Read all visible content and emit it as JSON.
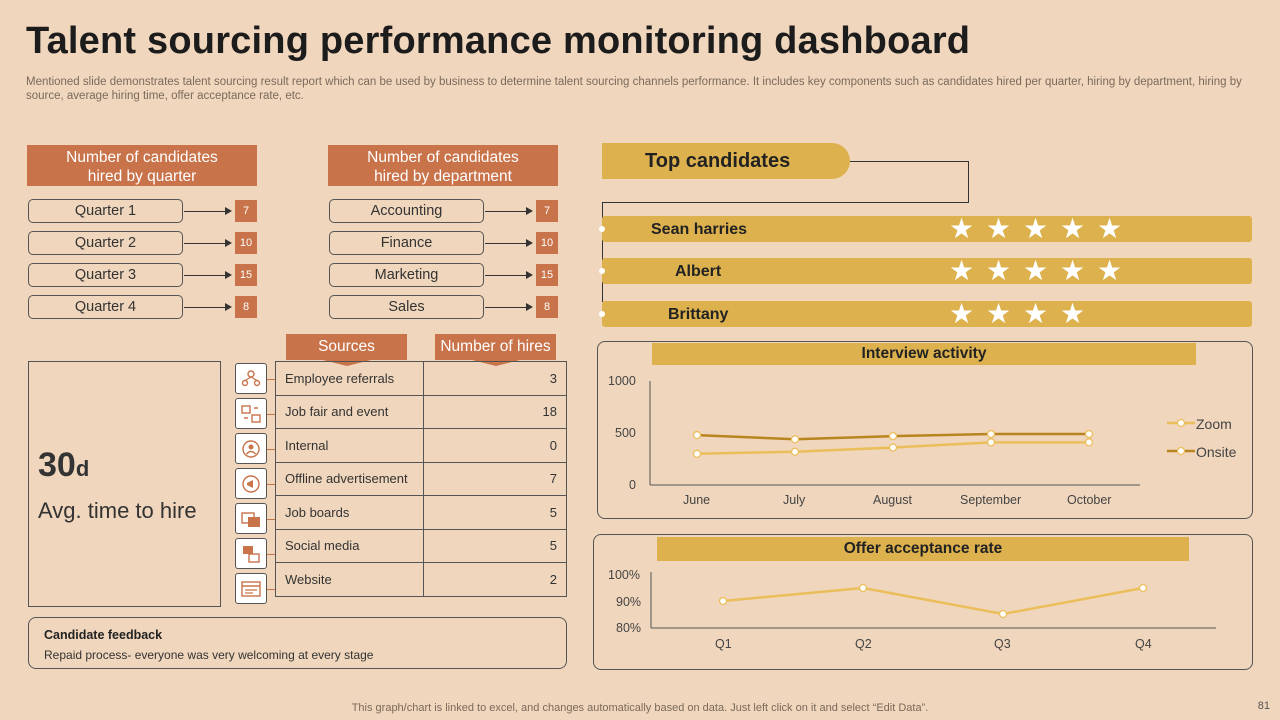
{
  "title": "Talent sourcing performance monitoring dashboard",
  "subtitle": "Mentioned slide demonstrates talent sourcing result report which can be used by business to determine talent sourcing channels performance. It includes key components such as candidates hired per quarter, hiring by department, hiring by source, average hiring time, offer acceptance rate, etc.",
  "by_quarter": {
    "header": "Number of candidates\nhired by quarter",
    "items": [
      {
        "label": "Quarter 1",
        "value": "7"
      },
      {
        "label": "Quarter 2",
        "value": "10"
      },
      {
        "label": "Quarter 3",
        "value": "15"
      },
      {
        "label": "Quarter 4",
        "value": "8"
      }
    ]
  },
  "by_department": {
    "header": "Number of candidates\nhired by department",
    "items": [
      {
        "label": "Accounting",
        "value": "7"
      },
      {
        "label": "Finance",
        "value": "10"
      },
      {
        "label": "Marketing",
        "value": "15"
      },
      {
        "label": "Sales",
        "value": "8"
      }
    ]
  },
  "sources": {
    "col_source": "Sources",
    "col_hires": "Number of hires",
    "rows": [
      {
        "icon": "referral-icon",
        "source": "Employee referrals",
        "hires": "3"
      },
      {
        "icon": "job-fair-icon",
        "source": "Job fair and event",
        "hires": "18"
      },
      {
        "icon": "internal-icon",
        "source": "Internal",
        "hires": "0"
      },
      {
        "icon": "advertisement-icon",
        "source": "Offline advertisement",
        "hires": "7"
      },
      {
        "icon": "job-board-icon",
        "source": "Job boards",
        "hires": "5"
      },
      {
        "icon": "social-media-icon",
        "source": "Social media",
        "hires": "5"
      },
      {
        "icon": "website-icon",
        "source": "Website",
        "hires": "2"
      }
    ]
  },
  "time_to_hire": {
    "value": "30",
    "unit": "d",
    "label": "Avg. time to hire"
  },
  "feedback": {
    "title": "Candidate feedback",
    "text": "Repaid process- everyone was very welcoming at every stage"
  },
  "top_candidates": {
    "title": "Top candidates",
    "items": [
      {
        "name": "Sean harries",
        "stars": 5
      },
      {
        "name": "Albert",
        "stars": 5
      },
      {
        "name": "Brittany",
        "stars": 4
      }
    ]
  },
  "colors": {
    "accent": "#C8734A",
    "gold": "#DDB24E",
    "background": "#F0D6BC",
    "zoom_line": "#EBBE5C",
    "onsite_line": "#B8861E"
  },
  "chart_data": [
    {
      "type": "line",
      "title": "Interview activity",
      "categories": [
        "June",
        "July",
        "August",
        "September",
        "October"
      ],
      "series": [
        {
          "name": "Zoom",
          "values": [
            300,
            320,
            360,
            410,
            410
          ]
        },
        {
          "name": "Onsite",
          "values": [
            480,
            440,
            470,
            490,
            490
          ]
        }
      ],
      "yticks": [
        "1000",
        "500",
        "0"
      ],
      "ylim": [
        0,
        1000
      ],
      "legend": "right"
    },
    {
      "type": "line",
      "title": "Offer acceptance rate",
      "categories": [
        "Q1",
        "Q2",
        "Q3",
        "Q4"
      ],
      "series": [
        {
          "name": "Offer acceptance rate",
          "values": [
            90,
            95,
            85,
            95
          ]
        }
      ],
      "yticks": [
        "100%",
        "90%",
        "80%"
      ],
      "ylim": [
        80,
        100
      ]
    }
  ],
  "footnote": "This graph/chart is linked to excel, and changes automatically based on data. Just left click on it and select “Edit Data”.",
  "page_number": "81"
}
